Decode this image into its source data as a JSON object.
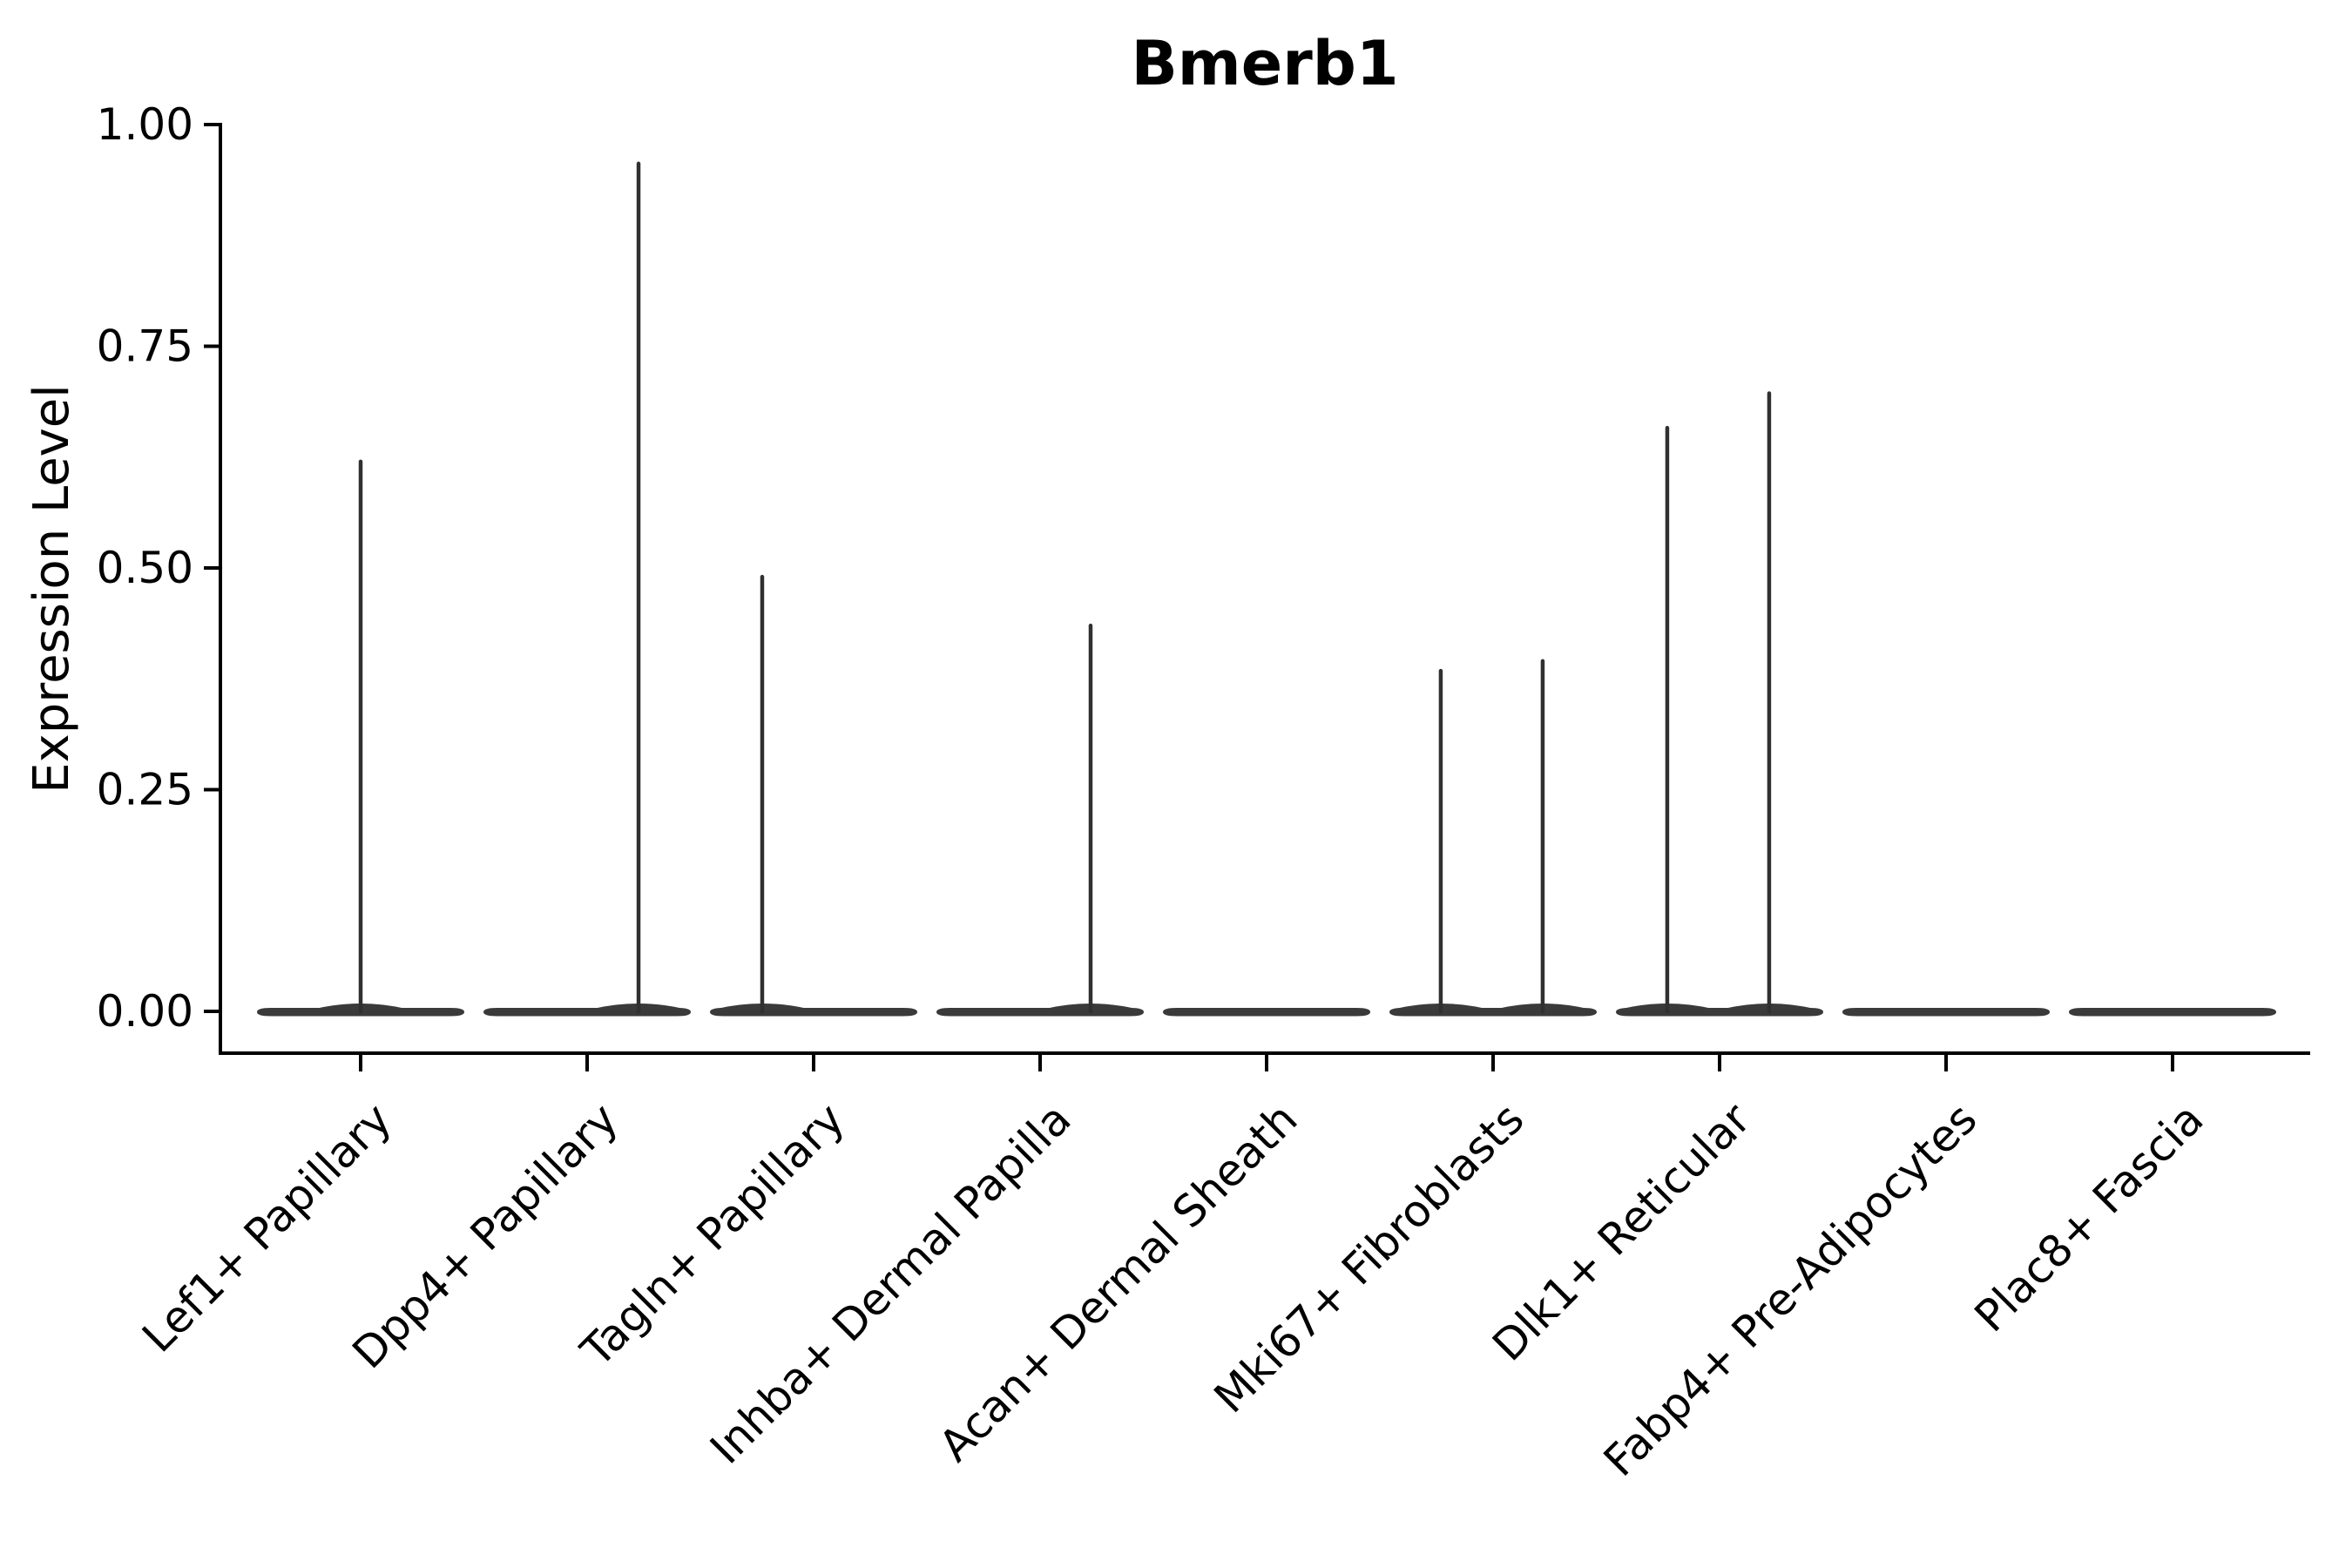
{
  "chart_data": {
    "type": "violin",
    "title": "Bmerb1",
    "xlabel": "",
    "ylabel": "Expression Level",
    "ylim": [
      0,
      1
    ],
    "yticks": [
      0.0,
      0.25,
      0.5,
      0.75,
      1.0
    ],
    "ytick_labels": [
      "0.00",
      "0.25",
      "0.50",
      "0.75",
      "1.00"
    ],
    "grid": false,
    "legend": "none",
    "categories": [
      "Lef1+ Papillary",
      "Dpp4+ Papillary",
      "Tagln+ Papillary",
      "Inhba+ Dermal Papilla",
      "Acan+ Dermal Sheath",
      "Mki67+ Fibroblasts",
      "Dlk1+ Reticular",
      "Fabp4+ Pre-Adipocytes",
      "Plac8+ Fascia"
    ],
    "series": [
      {
        "category": "Lef1+ Papillary",
        "baseline_value": 0,
        "spikes": [
          {
            "offset": 0.0,
            "max": 0.62
          }
        ]
      },
      {
        "category": "Dpp4+ Papillary",
        "baseline_value": 0,
        "spikes": [
          {
            "offset": 0.227,
            "max": 0.956
          }
        ]
      },
      {
        "category": "Tagln+ Papillary",
        "baseline_value": 0,
        "spikes": [
          {
            "offset": -0.227,
            "max": 0.49
          }
        ]
      },
      {
        "category": "Inhba+ Dermal Papilla",
        "baseline_value": 0,
        "spikes": [
          {
            "offset": 0.223,
            "max": 0.435
          }
        ]
      },
      {
        "category": "Acan+ Dermal Sheath",
        "baseline_value": 0,
        "spikes": []
      },
      {
        "category": "Mki67+ Fibroblasts",
        "baseline_value": 0,
        "spikes": [
          {
            "offset": -0.231,
            "max": 0.384
          },
          {
            "offset": 0.219,
            "max": 0.395
          }
        ]
      },
      {
        "category": "Dlk1+ Reticular",
        "baseline_value": 0,
        "spikes": [
          {
            "offset": -0.231,
            "max": 0.658
          },
          {
            "offset": 0.219,
            "max": 0.697
          }
        ]
      },
      {
        "category": "Fabp4+ Pre-Adipocytes",
        "baseline_value": 0,
        "spikes": []
      },
      {
        "category": "Plac8+ Fascia",
        "baseline_value": 0,
        "spikes": []
      }
    ],
    "colors": {
      "violin_body": "#3a3a3a",
      "spike": "#303030",
      "axis": "#000000",
      "text": "#000000",
      "background": "#ffffff"
    }
  }
}
